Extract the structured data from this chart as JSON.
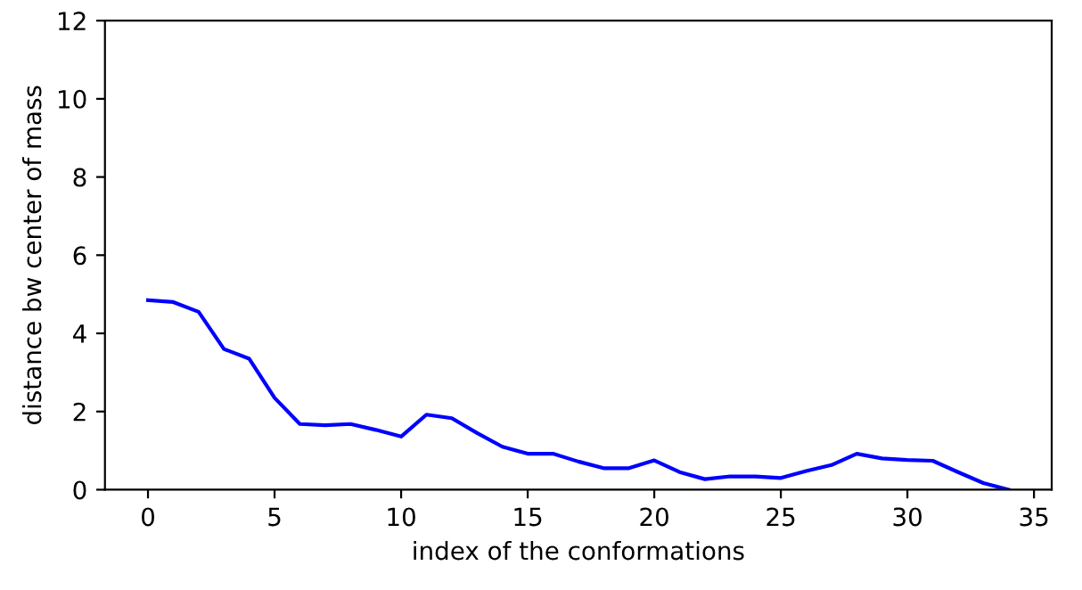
{
  "chart_data": {
    "type": "line",
    "xlabel": "index of the conformations",
    "ylabel": "distance bw center of mass",
    "x": [
      0,
      1,
      2,
      3,
      4,
      5,
      6,
      7,
      8,
      9,
      10,
      11,
      12,
      13,
      14,
      15,
      16,
      17,
      18,
      19,
      20,
      21,
      22,
      23,
      24,
      25,
      26,
      27,
      28,
      29,
      30,
      31,
      32,
      33,
      34
    ],
    "series": [
      {
        "color": "#0000ff",
        "values": [
          4.85,
          4.8,
          4.55,
          3.6,
          3.35,
          2.35,
          1.68,
          1.65,
          1.68,
          1.53,
          1.36,
          1.92,
          1.83,
          1.45,
          1.1,
          0.92,
          0.92,
          0.72,
          0.55,
          0.55,
          0.75,
          0.45,
          0.27,
          0.34,
          0.34,
          0.3,
          0.48,
          0.63,
          0.92,
          0.8,
          0.76,
          0.74,
          0.45,
          0.17,
          0.0
        ]
      }
    ],
    "xlim": [
      -1.7,
      35.7
    ],
    "ylim": [
      0,
      12
    ],
    "xticks": [
      0,
      5,
      10,
      15,
      20,
      25,
      30,
      35
    ],
    "yticks": [
      0,
      2,
      4,
      6,
      8,
      10,
      12
    ],
    "grid": false,
    "legend": false
  }
}
